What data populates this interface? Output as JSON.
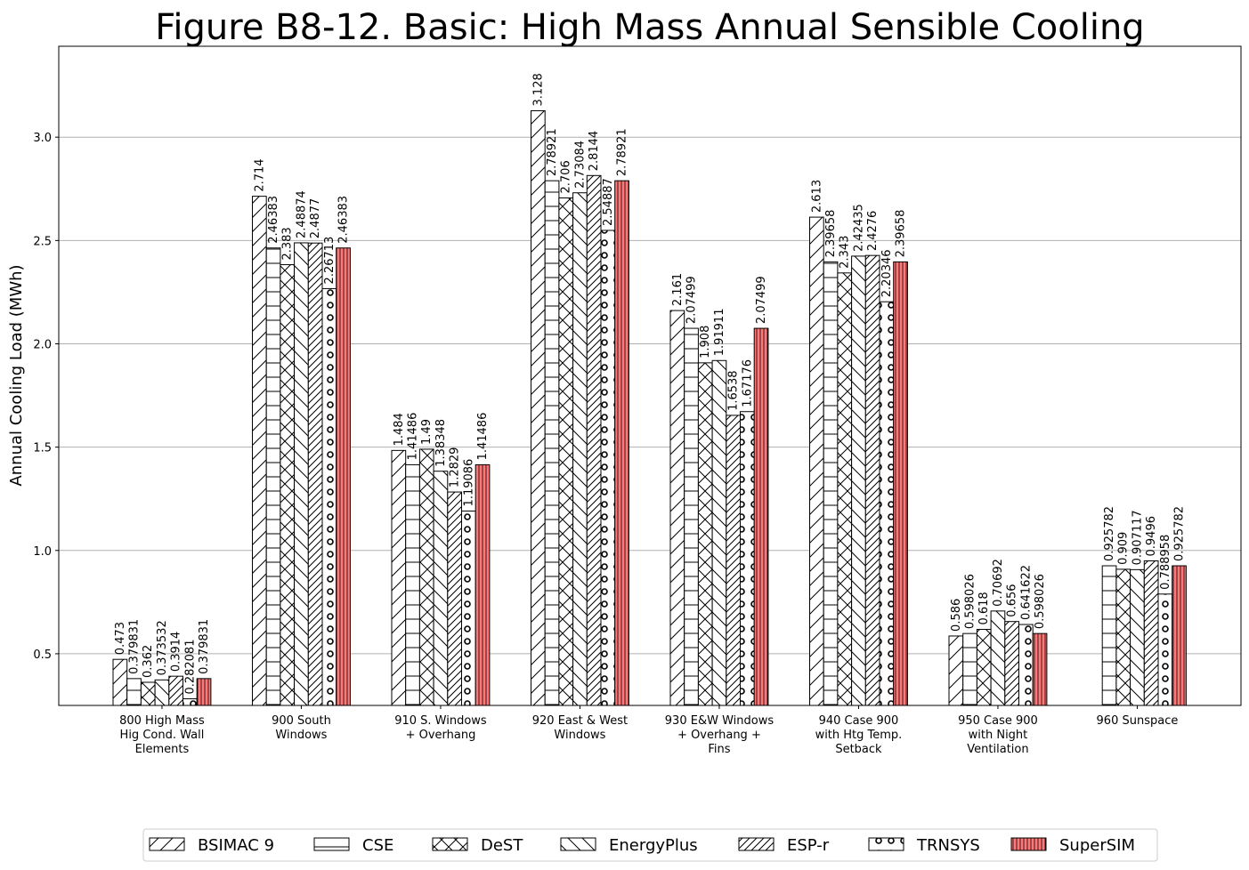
{
  "chart_data": {
    "type": "bar",
    "title": "Figure B8-12.  Basic: High Mass Annual Sensible Cooling",
    "ylabel": "Annual Cooling Load (MWh)",
    "xlabel": "",
    "ylim": [
      0.25,
      3.44
    ],
    "yticks": [
      "0.5",
      "1.0",
      "1.5",
      "2.0",
      "2.5",
      "3.0"
    ],
    "grid": "horizontal",
    "legend_position": "bottom",
    "categories": [
      [
        "800 High Mass",
        "Hig Cond. Wall",
        "Elements"
      ],
      [
        "900 South",
        "Windows"
      ],
      [
        "910 S. Windows",
        "+ Overhang"
      ],
      [
        "920 East & West",
        "Windows"
      ],
      [
        "930 E&W Windows",
        "+ Overhang +",
        "Fins"
      ],
      [
        "940 Case 900",
        "with Htg Temp.",
        "Setback"
      ],
      [
        "950 Case 900",
        "with Night",
        "Ventilation"
      ],
      [
        "960 Sunspace"
      ]
    ],
    "series": [
      {
        "name": "BSIMAC 9",
        "pattern": "fwd",
        "values": [
          0.473,
          2.714,
          1.484,
          3.128,
          2.161,
          2.613,
          0.586,
          null
        ],
        "labels": [
          "0.473",
          "2.714",
          "1.484",
          "3.128",
          "2.161",
          "2.613",
          "0.586",
          ""
        ]
      },
      {
        "name": "CSE",
        "pattern": "horiz",
        "values": [
          0.379831,
          2.46383,
          1.41486,
          2.78921,
          2.07499,
          2.39658,
          0.598026,
          0.925782
        ],
        "labels": [
          "0.379831",
          "2.46383",
          "1.41486",
          "2.78921",
          "2.07499",
          "2.39658",
          "0.598026",
          "0.925782"
        ]
      },
      {
        "name": "DeST",
        "pattern": "cross",
        "values": [
          0.362,
          2.383,
          1.49,
          2.706,
          1.908,
          2.343,
          0.618,
          0.909
        ],
        "labels": [
          "0.362",
          "2.383",
          "1.49",
          "2.706",
          "1.908",
          "2.343",
          "0.618",
          "0.909"
        ]
      },
      {
        "name": "EnergyPlus",
        "pattern": "back",
        "values": [
          0.373532,
          2.48874,
          1.38348,
          2.73084,
          1.91911,
          2.42435,
          0.70692,
          0.907117
        ],
        "labels": [
          "0.373532",
          "2.48874",
          "1.38348",
          "2.73084",
          "1.91911",
          "2.42435",
          "0.70692",
          "0.907117"
        ]
      },
      {
        "name": "ESP-r",
        "pattern": "fwd2",
        "values": [
          0.3914,
          2.4877,
          1.2829,
          2.8144,
          1.6538,
          2.4276,
          0.656,
          0.9496
        ],
        "labels": [
          "0.3914",
          "2.4877",
          "1.2829",
          "2.8144",
          "1.6538",
          "2.4276",
          "0.656",
          "0.9496"
        ]
      },
      {
        "name": "TRNSYS",
        "pattern": "circles",
        "values": [
          0.282081,
          2.26713,
          1.19086,
          2.54887,
          1.67176,
          2.20346,
          0.641622,
          0.788958
        ],
        "labels": [
          "0.282081",
          "2.26713",
          "1.19086",
          "2.54887",
          "1.67176",
          "2.20346",
          "0.641622",
          "0.788958"
        ]
      },
      {
        "name": "SuperSIM",
        "pattern": "vert",
        "color": "#ff7777",
        "values": [
          0.379831,
          2.46383,
          1.41486,
          2.78921,
          2.07499,
          2.39658,
          0.598026,
          0.925782
        ],
        "labels": [
          "0.379831",
          "2.46383",
          "1.41486",
          "2.78921",
          "2.07499",
          "2.39658",
          "0.598026",
          "0.925782"
        ]
      }
    ]
  }
}
